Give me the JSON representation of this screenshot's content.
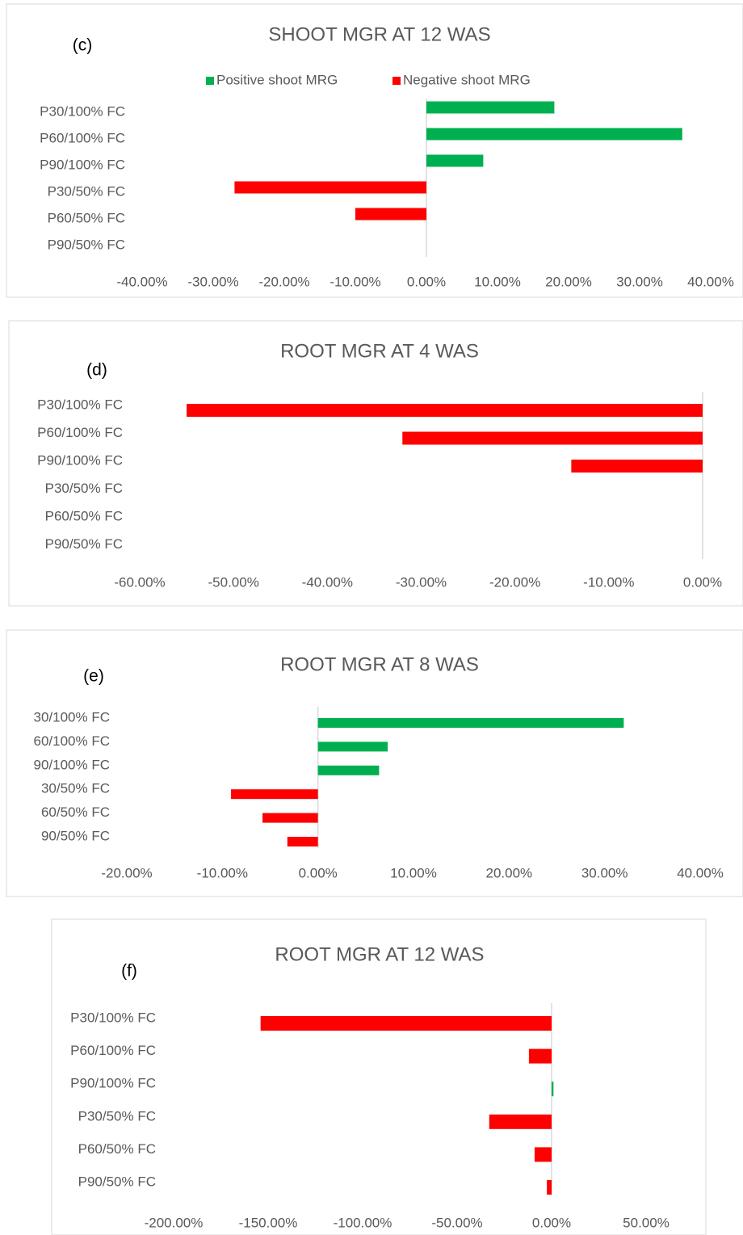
{
  "chart_data": [
    {
      "type": "bar",
      "orientation": "horizontal",
      "title": "SHOOT MGR AT 12 WAS",
      "annotation": "(c)",
      "categories": [
        "P30/100% FC",
        "P60/100% FC",
        "P90/100% FC",
        "P30/50% FC",
        "P60/50% FC",
        "P90/50% FC"
      ],
      "series": [
        {
          "name": "Positive shoot MRG",
          "color": "#00b050",
          "values": [
            18,
            36,
            8,
            null,
            null,
            null
          ]
        },
        {
          "name": "Negative shoot MRG",
          "color": "#ff0000",
          "values": [
            null,
            null,
            null,
            -27,
            -10,
            null
          ]
        }
      ],
      "xlim": [
        -40,
        40
      ],
      "xticks": [
        {
          "value": -40,
          "label": "-40.00%"
        },
        {
          "value": -30,
          "label": "-30.00%"
        },
        {
          "value": -20,
          "label": "-20.00%"
        },
        {
          "value": -10,
          "label": "-10.00%"
        },
        {
          "value": 0,
          "label": "0.00%"
        },
        {
          "value": 10,
          "label": "10.00%"
        },
        {
          "value": 20,
          "label": "20.00%"
        },
        {
          "value": 30,
          "label": "30.00%"
        },
        {
          "value": 40,
          "label": "40.00%"
        }
      ],
      "legend": "top"
    },
    {
      "type": "bar",
      "orientation": "horizontal",
      "title": "ROOT MGR AT 4 WAS",
      "annotation": "(d)",
      "categories": [
        "P30/100% FC",
        "P60/100% FC",
        "P90/100% FC",
        "P30/50% FC",
        "P60/50% FC",
        "P90/50% FC"
      ],
      "values": [
        -55,
        -32,
        -14,
        null,
        null,
        null
      ],
      "colors": [
        "#ff0000",
        "#ff0000",
        "#ff0000",
        "#ff0000",
        "#ff0000",
        "#ff0000"
      ],
      "xlim": [
        -60,
        0
      ],
      "xticks": [
        {
          "value": -60,
          "label": "-60.00%"
        },
        {
          "value": -50,
          "label": "-50.00%"
        },
        {
          "value": -40,
          "label": "-40.00%"
        },
        {
          "value": -30,
          "label": "-30.00%"
        },
        {
          "value": -20,
          "label": "-20.00%"
        },
        {
          "value": -10,
          "label": "-10.00%"
        },
        {
          "value": 0,
          "label": "0.00%"
        }
      ]
    },
    {
      "type": "bar",
      "orientation": "horizontal",
      "title": "ROOT MGR AT 8 WAS",
      "annotation": "(e)",
      "categories": [
        "30/100% FC",
        "60/100% FC",
        "90/100% FC",
        "30/50% FC",
        "60/50% FC",
        "90/50% FC"
      ],
      "values": [
        32,
        7.3,
        6.4,
        -9.1,
        -5.8,
        -3.2
      ],
      "colors": [
        "#00b050",
        "#00b050",
        "#00b050",
        "#ff0000",
        "#ff0000",
        "#ff0000"
      ],
      "xlim": [
        -20,
        40
      ],
      "xticks": [
        {
          "value": -20,
          "label": "-20.00%"
        },
        {
          "value": -10,
          "label": "-10.00%"
        },
        {
          "value": 0,
          "label": "0.00%"
        },
        {
          "value": 10,
          "label": "10.00%"
        },
        {
          "value": 20,
          "label": "20.00%"
        },
        {
          "value": 30,
          "label": "30.00%"
        },
        {
          "value": 40,
          "label": "40.00%"
        }
      ]
    },
    {
      "type": "bar",
      "orientation": "horizontal",
      "title": "ROOT MGR AT 12 WAS",
      "annotation": "(f)",
      "categories": [
        "P30/100% FC",
        "P60/100% FC",
        "P90/100% FC",
        "P30/50% FC",
        "P60/50% FC",
        "P90/50% FC"
      ],
      "values": [
        -154,
        -12,
        1,
        -33,
        -9,
        -2.5
      ],
      "colors": [
        "#ff0000",
        "#ff0000",
        "#00b050",
        "#ff0000",
        "#ff0000",
        "#ff0000"
      ],
      "xlim": [
        -200,
        50
      ],
      "xticks": [
        {
          "value": -200,
          "label": "-200.00%"
        },
        {
          "value": -150,
          "label": "-150.00%"
        },
        {
          "value": -100,
          "label": "-100.00%"
        },
        {
          "value": -50,
          "label": "-50.00%"
        },
        {
          "value": 0,
          "label": "0.00%"
        },
        {
          "value": 50,
          "label": "50.00%"
        }
      ]
    }
  ]
}
